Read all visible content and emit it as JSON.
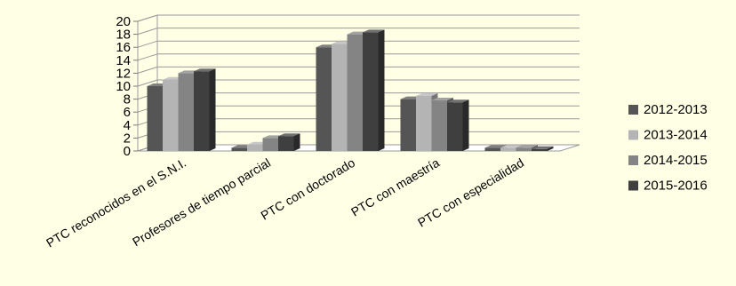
{
  "chart_data": {
    "type": "bar",
    "categories": [
      "PTC reconocidos en el S.N.I.",
      "Profesores de tiempo parcial",
      "PTC con doctorado",
      "PTC con maestría",
      "PTC con especialidad"
    ],
    "series": [
      {
        "name": "2012-2013",
        "color": "#555555",
        "values": [
          10,
          0.5,
          16,
          8,
          0.5
        ]
      },
      {
        "name": "2013-2014",
        "color": "#b4b4b4",
        "values": [
          11,
          1,
          16.5,
          8.5,
          0.5
        ]
      },
      {
        "name": "2014-2015",
        "color": "#848484",
        "values": [
          12,
          2,
          18,
          7.8,
          0.5
        ]
      },
      {
        "name": "2015-2016",
        "color": "#3f3f3f",
        "values": [
          12.3,
          2.3,
          18.3,
          7.5,
          0.3
        ]
      }
    ],
    "yticks": [
      "0",
      "2",
      "4",
      "6",
      "8",
      "10",
      "12",
      "14",
      "16",
      "18",
      "20"
    ],
    "ylim": [
      0,
      20
    ],
    "grid": true,
    "legend": "right",
    "style": "3d-clustered-column"
  }
}
